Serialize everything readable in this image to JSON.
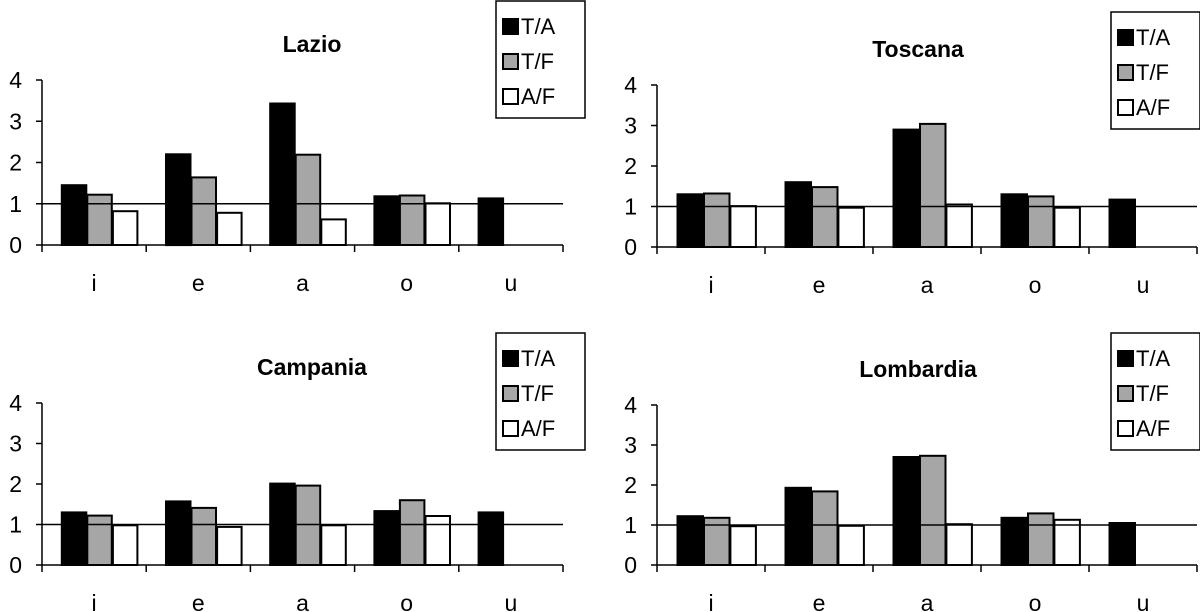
{
  "colors": {
    "T/A": "#000000",
    "T/F": "#a6a6a6",
    "A/F": "#ffffff",
    "stroke": "#000000"
  },
  "chart_data": [
    {
      "type": "bar",
      "title": "Lazio",
      "categories": [
        "i",
        "e",
        "a",
        "o",
        "u"
      ],
      "ylim": [
        0,
        4
      ],
      "yticks": [
        "0",
        "1",
        "2",
        "3",
        "4"
      ],
      "reference_line": 1,
      "legend": "top-right",
      "series": [
        {
          "name": "T/A",
          "values": [
            1.45,
            2.2,
            3.43,
            1.18,
            1.13
          ]
        },
        {
          "name": "T/F",
          "values": [
            1.22,
            1.64,
            2.19,
            1.2,
            null
          ]
        },
        {
          "name": "A/F",
          "values": [
            0.82,
            0.78,
            0.62,
            1.01,
            null
          ]
        }
      ]
    },
    {
      "type": "bar",
      "title": "Toscana",
      "categories": [
        "i",
        "e",
        "a",
        "o",
        "u"
      ],
      "ylim": [
        0,
        4
      ],
      "yticks": [
        "0",
        "1",
        "2",
        "3",
        "4"
      ],
      "reference_line": 1,
      "legend": "top-right",
      "series": [
        {
          "name": "T/A",
          "values": [
            1.3,
            1.6,
            2.9,
            1.3,
            1.17
          ]
        },
        {
          "name": "T/F",
          "values": [
            1.32,
            1.48,
            3.04,
            1.25,
            null
          ]
        },
        {
          "name": "A/F",
          "values": [
            1.01,
            0.97,
            1.05,
            0.97,
            null
          ]
        }
      ]
    },
    {
      "type": "bar",
      "title": "Campania",
      "categories": [
        "i",
        "e",
        "a",
        "o",
        "u"
      ],
      "ylim": [
        0,
        4
      ],
      "yticks": [
        "0",
        "1",
        "2",
        "3",
        "4"
      ],
      "reference_line": 1,
      "legend": "top-right",
      "series": [
        {
          "name": "T/A",
          "values": [
            1.3,
            1.57,
            2.01,
            1.33,
            1.3
          ]
        },
        {
          "name": "T/F",
          "values": [
            1.22,
            1.41,
            1.96,
            1.6,
            null
          ]
        },
        {
          "name": "A/F",
          "values": [
            0.98,
            0.94,
            0.98,
            1.21,
            null
          ]
        }
      ]
    },
    {
      "type": "bar",
      "title": "Lombardia",
      "categories": [
        "i",
        "e",
        "a",
        "o",
        "u"
      ],
      "ylim": [
        0,
        4
      ],
      "yticks": [
        "0",
        "1",
        "2",
        "3",
        "4"
      ],
      "reference_line": 1,
      "legend": "top-right",
      "series": [
        {
          "name": "T/A",
          "values": [
            1.22,
            1.93,
            2.7,
            1.18,
            1.05
          ]
        },
        {
          "name": "T/F",
          "values": [
            1.18,
            1.84,
            2.73,
            1.29,
            null
          ]
        },
        {
          "name": "A/F",
          "values": [
            0.97,
            0.98,
            1.02,
            1.13,
            null
          ]
        }
      ]
    }
  ]
}
